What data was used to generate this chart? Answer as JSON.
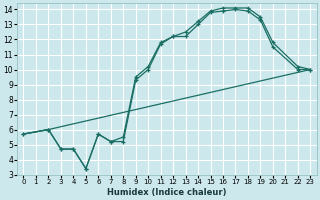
{
  "xlabel": "Humidex (Indice chaleur)",
  "bg_color": "#cce8ec",
  "grid_color": "#ffffff",
  "line_color": "#1a6e64",
  "xlim": [
    -0.5,
    23.5
  ],
  "ylim": [
    3,
    14.4
  ],
  "xticks": [
    0,
    1,
    2,
    3,
    4,
    5,
    6,
    7,
    8,
    9,
    10,
    11,
    12,
    13,
    14,
    15,
    16,
    17,
    18,
    19,
    20,
    21,
    22,
    23
  ],
  "yticks": [
    3,
    4,
    5,
    6,
    7,
    8,
    9,
    10,
    11,
    12,
    13,
    14
  ],
  "line1_x": [
    0,
    2,
    23
  ],
  "line1_y": [
    5.7,
    6.0,
    10.0
  ],
  "line2_x": [
    0,
    2,
    3,
    4,
    5,
    6,
    7,
    8,
    9,
    10,
    11,
    12,
    13,
    14,
    15,
    16,
    17,
    18,
    19,
    20,
    22,
    23
  ],
  "line2_y": [
    5.7,
    6.0,
    4.7,
    4.7,
    3.4,
    5.7,
    5.2,
    5.2,
    9.3,
    10.0,
    11.7,
    12.2,
    12.2,
    13.0,
    13.8,
    13.9,
    14.0,
    13.9,
    13.3,
    11.5,
    10.0,
    10.0
  ],
  "line3_x": [
    0,
    2,
    3,
    4,
    5,
    6,
    7,
    8,
    9,
    10,
    11,
    12,
    13,
    14,
    15,
    16,
    17,
    18,
    19,
    20,
    22,
    23
  ],
  "line3_y": [
    5.7,
    6.0,
    4.7,
    4.7,
    3.4,
    5.7,
    5.2,
    5.5,
    9.5,
    10.2,
    11.8,
    12.2,
    12.5,
    13.2,
    13.9,
    14.1,
    14.1,
    14.1,
    13.5,
    11.8,
    10.2,
    10.0
  ]
}
